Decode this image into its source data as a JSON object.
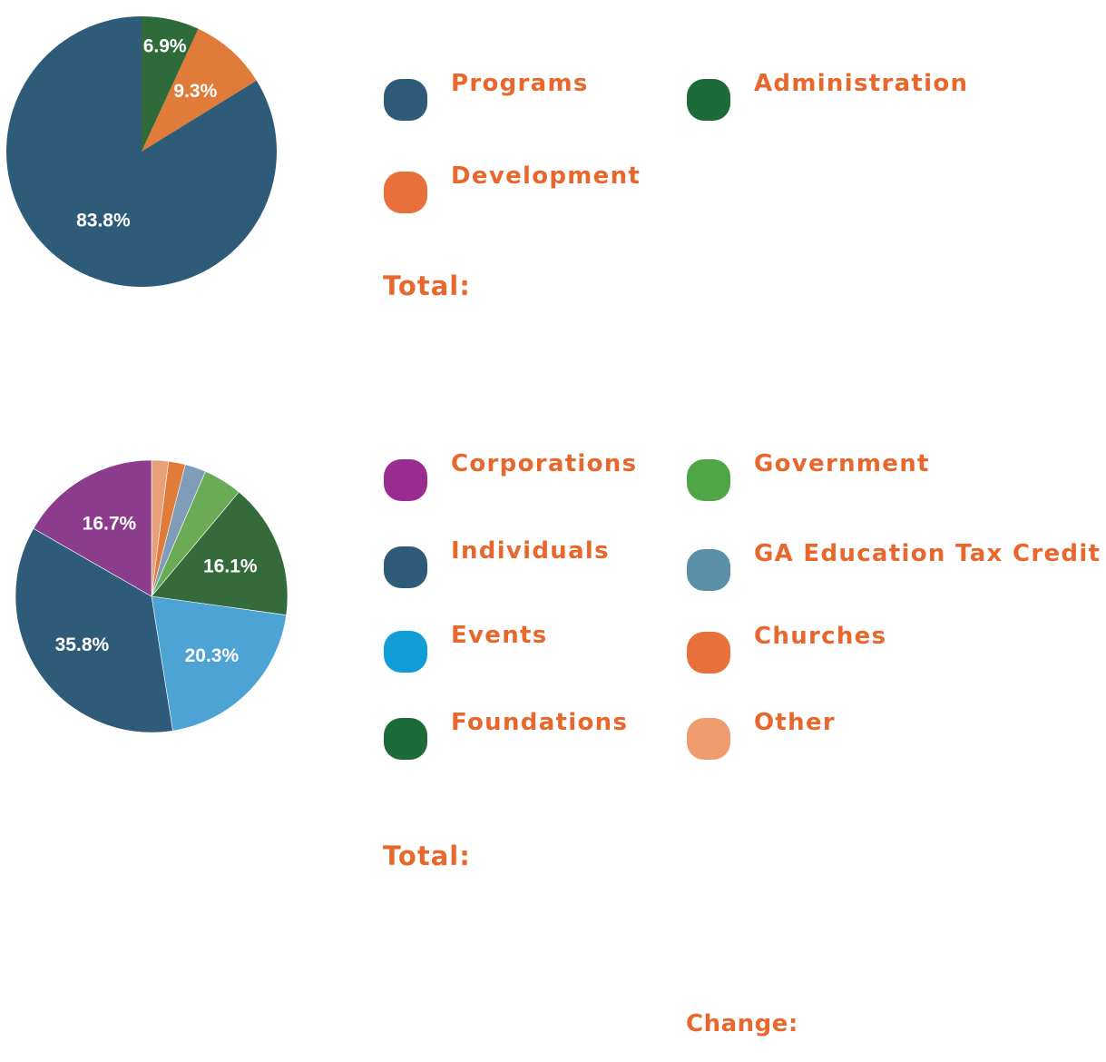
{
  "chart_data": [
    {
      "type": "pie",
      "title": "",
      "slices": [
        {
          "label": "Administration",
          "value": 6.9,
          "display": "6.9%",
          "color": "#2f6b3a"
        },
        {
          "label": "Development",
          "value": 9.3,
          "display": "9.3%",
          "color": "#e07b39"
        },
        {
          "label": "Programs",
          "value": 83.8,
          "display": "83.8%",
          "color": "#2e5b78"
        }
      ],
      "legend": {
        "placement": "right",
        "items": [
          {
            "label": "Programs",
            "color": "#2e5b78"
          },
          {
            "label": "Administration",
            "color": "#1e6b3a"
          },
          {
            "label": "Development",
            "color": "#e8703a"
          }
        ]
      },
      "total_label": "Total:"
    },
    {
      "type": "pie",
      "title": "",
      "slices": [
        {
          "label": "Other",
          "value": 2.0,
          "display": "",
          "color": "#e8a07a"
        },
        {
          "label": "Churches",
          "value": 2.0,
          "display": "",
          "color": "#e07b39"
        },
        {
          "label": "GA Education Tax Credit",
          "value": 2.5,
          "display": "",
          "color": "#7f9db8"
        },
        {
          "label": "Government",
          "value": 4.6,
          "display": "",
          "color": "#6aab55"
        },
        {
          "label": "Foundations",
          "value": 16.1,
          "display": "16.1%",
          "color": "#356b3a"
        },
        {
          "label": "Events",
          "value": 20.3,
          "display": "20.3%",
          "color": "#4da3d4"
        },
        {
          "label": "Individuals",
          "value": 35.8,
          "display": "35.8%",
          "color": "#2e5b78"
        },
        {
          "label": "Corporations",
          "value": 16.7,
          "display": "16.7%",
          "color": "#8b3c8c"
        }
      ],
      "legend": {
        "placement": "right",
        "items": [
          {
            "label": "Corporations",
            "color": "#9b2c8f"
          },
          {
            "label": "Government",
            "color": "#4ea646"
          },
          {
            "label": "Individuals",
            "color": "#2e5b78"
          },
          {
            "label": "GA Education Tax Credit",
            "color": "#5b8fa8"
          },
          {
            "label": "Events",
            "color": "#119dd6"
          },
          {
            "label": "Churches",
            "color": "#e8703a"
          },
          {
            "label": "Foundations",
            "color": "#1e6b3a"
          },
          {
            "label": "Other",
            "color": "#ee9b6e"
          }
        ]
      },
      "total_label": "Total:",
      "change_label": "Change:"
    }
  ]
}
